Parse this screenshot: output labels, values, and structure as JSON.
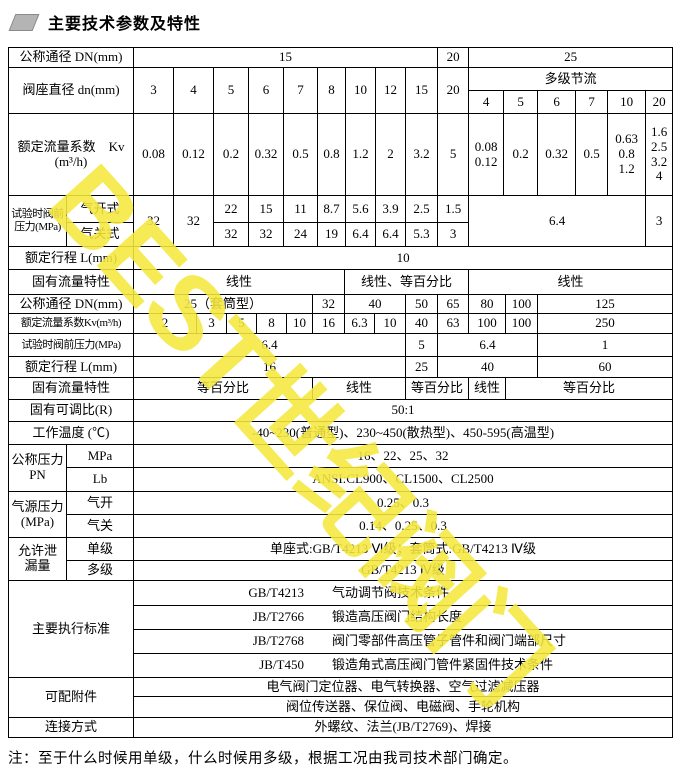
{
  "title": "主要技术参数及特性",
  "watermark": "BEST世纪阀门",
  "footnote": "注：至于什么时候用单级，什么时候用多级，根据工况由我司技术部门确定。",
  "colors": {
    "title_icon": "#b4b4b4",
    "watermark_yellow": "#f5e73e",
    "line": "#000000"
  },
  "table": {
    "sections": [
      {
        "name": "top-section-dn15-25",
        "cols": [
          58,
          67,
          40,
          40,
          35,
          35,
          34,
          28,
          30,
          30,
          32,
          31,
          35,
          34,
          38,
          32,
          38,
          27
        ],
        "rows": [
          {
            "h": 20,
            "cells": [
              {
                "t": "公称通径 DN(mm)",
                "c": 2,
                "cls": "lbl"
              },
              {
                "t": "15",
                "c": 9
              },
              {
                "t": "20"
              },
              {
                "t": "25",
                "c": 6
              }
            ]
          },
          {
            "h": 23,
            "cells": [
              {
                "t": "阀座直径 dn(mm)",
                "c": 2,
                "r": 2,
                "cls": "lbl"
              },
              {
                "t": "3",
                "r": 2
              },
              {
                "t": "4",
                "r": 2
              },
              {
                "t": "5",
                "r": 2
              },
              {
                "t": "6",
                "r": 2
              },
              {
                "t": "7",
                "r": 2
              },
              {
                "t": "8",
                "r": 2
              },
              {
                "t": "10",
                "r": 2
              },
              {
                "t": "12",
                "r": 2
              },
              {
                "t": "15",
                "r": 2
              },
              {
                "t": "20",
                "r": 2
              },
              {
                "t": "多级节流",
                "c": 6
              }
            ]
          },
          {
            "h": 23,
            "cells": [
              {
                "t": "4"
              },
              {
                "t": "5"
              },
              {
                "t": "6"
              },
              {
                "t": "7"
              },
              {
                "t": "10"
              },
              {
                "t": "20"
              }
            ]
          },
          {
            "h": 82,
            "cells": [
              {
                "t": "额定流量系数　Kv\n(m³/h)",
                "c": 2,
                "cls": "lbl"
              },
              {
                "t": "0.08"
              },
              {
                "t": "0.12"
              },
              {
                "t": "0.2"
              },
              {
                "t": "0.32"
              },
              {
                "t": "0.5"
              },
              {
                "t": "0.8"
              },
              {
                "t": "1.2"
              },
              {
                "t": "2"
              },
              {
                "t": "3.2"
              },
              {
                "t": "5"
              },
              {
                "t": "0.08\n0.12"
              },
              {
                "t": "0.2"
              },
              {
                "t": "0.32"
              },
              {
                "t": "0.5"
              },
              {
                "t": "0.63\n0.8\n1.2"
              },
              {
                "t": "1.6\n2.5\n3.2\n4"
              }
            ]
          },
          {
            "h": 27,
            "cells": [
              {
                "t": "试验时阀前\n压力(MPa)",
                "r": 2,
                "cls": "lbl small"
              },
              {
                "t": "气开式",
                "cls": "lbl"
              },
              {
                "t": "32",
                "r": 2
              },
              {
                "t": "32",
                "r": 2
              },
              {
                "t": "22"
              },
              {
                "t": "15"
              },
              {
                "t": "11"
              },
              {
                "t": "8.7"
              },
              {
                "t": "5.6"
              },
              {
                "t": "3.9"
              },
              {
                "t": "2.5"
              },
              {
                "t": "1.5"
              },
              {
                "t": "6.4",
                "c": 5,
                "r": 2
              },
              {
                "t": "3",
                "r": 2
              }
            ]
          },
          {
            "h": 24,
            "cells": [
              {
                "t": "气关式",
                "cls": "lbl"
              },
              {
                "t": "32"
              },
              {
                "t": "32"
              },
              {
                "t": "24"
              },
              {
                "t": "19"
              },
              {
                "t": "6.4"
              },
              {
                "t": "6.4"
              },
              {
                "t": "5.3"
              },
              {
                "t": "3"
              }
            ]
          },
          {
            "h": 23,
            "cells": [
              {
                "t": "额定行程 L(mm)",
                "c": 2,
                "cls": "lbl"
              },
              {
                "t": "10",
                "c": 16
              }
            ]
          }
        ]
      },
      {
        "name": "mid-section-dn25-125",
        "cols": [
          125,
          63,
          30,
          30,
          30,
          26,
          32,
          30,
          31,
          32,
          31,
          37,
          32,
          135
        ],
        "rows": [
          {
            "h": 25,
            "cells": [
              {
                "t": "固有流量特性",
                "cls": "lbl"
              },
              {
                "t": "线性",
                "c": 6
              },
              {
                "t": "线性、等百分比",
                "c": 4
              },
              {
                "t": "线性",
                "c": 3
              }
            ]
          },
          {
            "h": 19,
            "cells": [
              {
                "t": "公称通径 DN(mm)",
                "cls": "lbl"
              },
              {
                "t": "25（套筒型）",
                "c": 5
              },
              {
                "t": "32"
              },
              {
                "t": "40",
                "c": 2
              },
              {
                "t": "50"
              },
              {
                "t": "65"
              },
              {
                "t": "80"
              },
              {
                "t": "100"
              },
              {
                "t": "125"
              }
            ]
          },
          {
            "h": 20,
            "cells": [
              {
                "t": "额定流量系数Kv(m³/h)",
                "cls": "lbl small"
              },
              {
                "t": "2"
              },
              {
                "t": "3"
              },
              {
                "t": "5"
              },
              {
                "t": "8"
              },
              {
                "t": "10"
              },
              {
                "t": "16"
              },
              {
                "t": "6.3"
              },
              {
                "t": "10"
              },
              {
                "t": "40"
              },
              {
                "t": "63"
              },
              {
                "t": "100"
              },
              {
                "t": "100"
              },
              {
                "t": "250"
              }
            ]
          },
          {
            "h": 23,
            "cells": [
              {
                "t": "试验时阀前压力(MPa)",
                "cls": "lbl small"
              },
              {
                "t": "6.4",
                "c": 8
              },
              {
                "t": "5"
              },
              {
                "t": "6.4",
                "c": 3
              },
              {
                "t": "1"
              }
            ]
          },
          {
            "h": 21,
            "cells": [
              {
                "t": "额定行程  L(mm)",
                "cls": "lbl"
              },
              {
                "t": "16",
                "c": 8
              },
              {
                "t": "25"
              },
              {
                "t": "40",
                "c": 3
              },
              {
                "t": "60"
              }
            ]
          },
          {
            "h": 22,
            "cells": [
              {
                "t": "固有流量特性",
                "cls": "lbl"
              },
              {
                "t": "等百分比",
                "c": 5
              },
              {
                "t": "线性",
                "c": 3
              },
              {
                "t": "等百分比",
                "c": 2
              },
              {
                "t": "线性"
              },
              {
                "t": "等百分比",
                "c": 2
              }
            ]
          }
        ]
      },
      {
        "name": "bottom-section-general",
        "cols": [
          58,
          67,
          539
        ],
        "rows": [
          {
            "h": 22,
            "cells": [
              {
                "t": "固有可调比(R)",
                "c": 2,
                "cls": "lbl"
              },
              {
                "t": "50:1"
              }
            ]
          },
          {
            "h": 23,
            "cells": [
              {
                "t": "工作温度 (℃)",
                "c": 2,
                "cls": "lbl"
              },
              {
                "t": "-40~230(普通型)、230~450(散热型)、450-595(高温型)"
              }
            ]
          },
          {
            "h": 23,
            "cells": [
              {
                "t": "公称压力\nPN",
                "r": 2,
                "cls": "lbl"
              },
              {
                "t": "MPa",
                "cls": "lbl"
              },
              {
                "t": "16、22、25、32"
              }
            ]
          },
          {
            "h": 24,
            "cells": [
              {
                "t": "Lb",
                "cls": "lbl"
              },
              {
                "t": "ANSI:CL900、CL1500、CL2500"
              }
            ]
          },
          {
            "h": 23,
            "cells": [
              {
                "t": "气源压力\n(MPa)",
                "r": 2,
                "cls": "lbl"
              },
              {
                "t": "气开",
                "cls": "lbl"
              },
              {
                "t": "0.25、0.3"
              }
            ]
          },
          {
            "h": 23,
            "cells": [
              {
                "t": "气关",
                "cls": "lbl"
              },
              {
                "t": "0.14、0.25、0.3"
              }
            ]
          },
          {
            "h": 23,
            "cells": [
              {
                "t": "允许泄\n漏量",
                "r": 2,
                "cls": "lbl"
              },
              {
                "t": "单级",
                "cls": "lbl"
              },
              {
                "t": "单座式:GB/T4213 Ⅵ级；套筒式:GB/T4213 Ⅳ级"
              }
            ]
          },
          {
            "h": 20,
            "cells": [
              {
                "t": "多级",
                "cls": "lbl"
              },
              {
                "t": "GB/T4213 Ⅳ级"
              }
            ]
          },
          {
            "h": 25,
            "cells": [
              {
                "t": "主要执行标准",
                "c": 2,
                "r": 4,
                "cls": "lbl"
              },
              {
                "code": "GB/T4213",
                "desc": "气动调节阀技术条件"
              }
            ]
          },
          {
            "h": 24,
            "cells": [
              {
                "code": "JB/T2766",
                "desc": "锻造高压阀门结构长度"
              }
            ]
          },
          {
            "h": 24,
            "cells": [
              {
                "code": "JB/T2768",
                "desc": "阀门零部件高压管子管件和阀门端部尺寸"
              }
            ]
          },
          {
            "h": 24,
            "cells": [
              {
                "code": "JB/T450",
                "desc": "锻造角式高压阀门管件紧固件技术条件"
              }
            ]
          },
          {
            "h": 19,
            "cells": [
              {
                "t": "可配附件",
                "c": 2,
                "r": 2,
                "cls": "lbl"
              },
              {
                "t": "电气阀门定位器、电气转换器、空气过滤减压器"
              }
            ]
          },
          {
            "h": 21,
            "cells": [
              {
                "t": "阀位传送器、保位阀、电磁阀、手轮机构"
              }
            ]
          },
          {
            "h": 20,
            "cells": [
              {
                "t": "连接方式",
                "c": 2,
                "cls": "lbl"
              },
              {
                "t": "外螺纹、法兰(JB/T2769)、焊接"
              }
            ]
          }
        ]
      }
    ]
  }
}
